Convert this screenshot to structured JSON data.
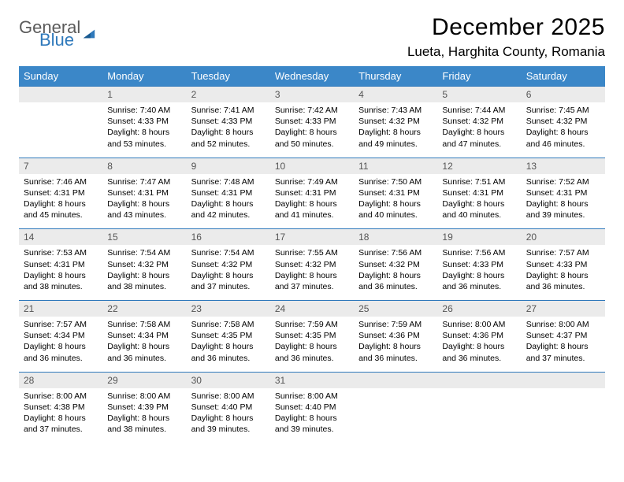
{
  "logo": {
    "text1": "General",
    "text2": "Blue"
  },
  "title": "December 2025",
  "location": "Lueta, Harghita County, Romania",
  "colors": {
    "header_bg": "#3b87c8",
    "header_text": "#ffffff",
    "daynum_bg": "#ebebeb",
    "daynum_text": "#555555",
    "row_border": "#2f79bb",
    "logo_gray": "#5b5b5b",
    "logo_blue": "#2f79bb",
    "body_text": "#000000",
    "background": "#ffffff"
  },
  "typography": {
    "title_fontsize": 30,
    "location_fontsize": 17,
    "weekday_fontsize": 13,
    "daynum_fontsize": 12,
    "cell_fontsize": 10.5
  },
  "weekdays": [
    "Sunday",
    "Monday",
    "Tuesday",
    "Wednesday",
    "Thursday",
    "Friday",
    "Saturday"
  ],
  "weeks": [
    [
      {
        "num": "",
        "sunrise": "",
        "sunset": "",
        "daylight": ""
      },
      {
        "num": "1",
        "sunrise": "Sunrise: 7:40 AM",
        "sunset": "Sunset: 4:33 PM",
        "daylight": "Daylight: 8 hours and 53 minutes."
      },
      {
        "num": "2",
        "sunrise": "Sunrise: 7:41 AM",
        "sunset": "Sunset: 4:33 PM",
        "daylight": "Daylight: 8 hours and 52 minutes."
      },
      {
        "num": "3",
        "sunrise": "Sunrise: 7:42 AM",
        "sunset": "Sunset: 4:33 PM",
        "daylight": "Daylight: 8 hours and 50 minutes."
      },
      {
        "num": "4",
        "sunrise": "Sunrise: 7:43 AM",
        "sunset": "Sunset: 4:32 PM",
        "daylight": "Daylight: 8 hours and 49 minutes."
      },
      {
        "num": "5",
        "sunrise": "Sunrise: 7:44 AM",
        "sunset": "Sunset: 4:32 PM",
        "daylight": "Daylight: 8 hours and 47 minutes."
      },
      {
        "num": "6",
        "sunrise": "Sunrise: 7:45 AM",
        "sunset": "Sunset: 4:32 PM",
        "daylight": "Daylight: 8 hours and 46 minutes."
      }
    ],
    [
      {
        "num": "7",
        "sunrise": "Sunrise: 7:46 AM",
        "sunset": "Sunset: 4:31 PM",
        "daylight": "Daylight: 8 hours and 45 minutes."
      },
      {
        "num": "8",
        "sunrise": "Sunrise: 7:47 AM",
        "sunset": "Sunset: 4:31 PM",
        "daylight": "Daylight: 8 hours and 43 minutes."
      },
      {
        "num": "9",
        "sunrise": "Sunrise: 7:48 AM",
        "sunset": "Sunset: 4:31 PM",
        "daylight": "Daylight: 8 hours and 42 minutes."
      },
      {
        "num": "10",
        "sunrise": "Sunrise: 7:49 AM",
        "sunset": "Sunset: 4:31 PM",
        "daylight": "Daylight: 8 hours and 41 minutes."
      },
      {
        "num": "11",
        "sunrise": "Sunrise: 7:50 AM",
        "sunset": "Sunset: 4:31 PM",
        "daylight": "Daylight: 8 hours and 40 minutes."
      },
      {
        "num": "12",
        "sunrise": "Sunrise: 7:51 AM",
        "sunset": "Sunset: 4:31 PM",
        "daylight": "Daylight: 8 hours and 40 minutes."
      },
      {
        "num": "13",
        "sunrise": "Sunrise: 7:52 AM",
        "sunset": "Sunset: 4:31 PM",
        "daylight": "Daylight: 8 hours and 39 minutes."
      }
    ],
    [
      {
        "num": "14",
        "sunrise": "Sunrise: 7:53 AM",
        "sunset": "Sunset: 4:31 PM",
        "daylight": "Daylight: 8 hours and 38 minutes."
      },
      {
        "num": "15",
        "sunrise": "Sunrise: 7:54 AM",
        "sunset": "Sunset: 4:32 PM",
        "daylight": "Daylight: 8 hours and 38 minutes."
      },
      {
        "num": "16",
        "sunrise": "Sunrise: 7:54 AM",
        "sunset": "Sunset: 4:32 PM",
        "daylight": "Daylight: 8 hours and 37 minutes."
      },
      {
        "num": "17",
        "sunrise": "Sunrise: 7:55 AM",
        "sunset": "Sunset: 4:32 PM",
        "daylight": "Daylight: 8 hours and 37 minutes."
      },
      {
        "num": "18",
        "sunrise": "Sunrise: 7:56 AM",
        "sunset": "Sunset: 4:32 PM",
        "daylight": "Daylight: 8 hours and 36 minutes."
      },
      {
        "num": "19",
        "sunrise": "Sunrise: 7:56 AM",
        "sunset": "Sunset: 4:33 PM",
        "daylight": "Daylight: 8 hours and 36 minutes."
      },
      {
        "num": "20",
        "sunrise": "Sunrise: 7:57 AM",
        "sunset": "Sunset: 4:33 PM",
        "daylight": "Daylight: 8 hours and 36 minutes."
      }
    ],
    [
      {
        "num": "21",
        "sunrise": "Sunrise: 7:57 AM",
        "sunset": "Sunset: 4:34 PM",
        "daylight": "Daylight: 8 hours and 36 minutes."
      },
      {
        "num": "22",
        "sunrise": "Sunrise: 7:58 AM",
        "sunset": "Sunset: 4:34 PM",
        "daylight": "Daylight: 8 hours and 36 minutes."
      },
      {
        "num": "23",
        "sunrise": "Sunrise: 7:58 AM",
        "sunset": "Sunset: 4:35 PM",
        "daylight": "Daylight: 8 hours and 36 minutes."
      },
      {
        "num": "24",
        "sunrise": "Sunrise: 7:59 AM",
        "sunset": "Sunset: 4:35 PM",
        "daylight": "Daylight: 8 hours and 36 minutes."
      },
      {
        "num": "25",
        "sunrise": "Sunrise: 7:59 AM",
        "sunset": "Sunset: 4:36 PM",
        "daylight": "Daylight: 8 hours and 36 minutes."
      },
      {
        "num": "26",
        "sunrise": "Sunrise: 8:00 AM",
        "sunset": "Sunset: 4:36 PM",
        "daylight": "Daylight: 8 hours and 36 minutes."
      },
      {
        "num": "27",
        "sunrise": "Sunrise: 8:00 AM",
        "sunset": "Sunset: 4:37 PM",
        "daylight": "Daylight: 8 hours and 37 minutes."
      }
    ],
    [
      {
        "num": "28",
        "sunrise": "Sunrise: 8:00 AM",
        "sunset": "Sunset: 4:38 PM",
        "daylight": "Daylight: 8 hours and 37 minutes."
      },
      {
        "num": "29",
        "sunrise": "Sunrise: 8:00 AM",
        "sunset": "Sunset: 4:39 PM",
        "daylight": "Daylight: 8 hours and 38 minutes."
      },
      {
        "num": "30",
        "sunrise": "Sunrise: 8:00 AM",
        "sunset": "Sunset: 4:40 PM",
        "daylight": "Daylight: 8 hours and 39 minutes."
      },
      {
        "num": "31",
        "sunrise": "Sunrise: 8:00 AM",
        "sunset": "Sunset: 4:40 PM",
        "daylight": "Daylight: 8 hours and 39 minutes."
      },
      {
        "num": "",
        "sunrise": "",
        "sunset": "",
        "daylight": ""
      },
      {
        "num": "",
        "sunrise": "",
        "sunset": "",
        "daylight": ""
      },
      {
        "num": "",
        "sunrise": "",
        "sunset": "",
        "daylight": ""
      }
    ]
  ]
}
